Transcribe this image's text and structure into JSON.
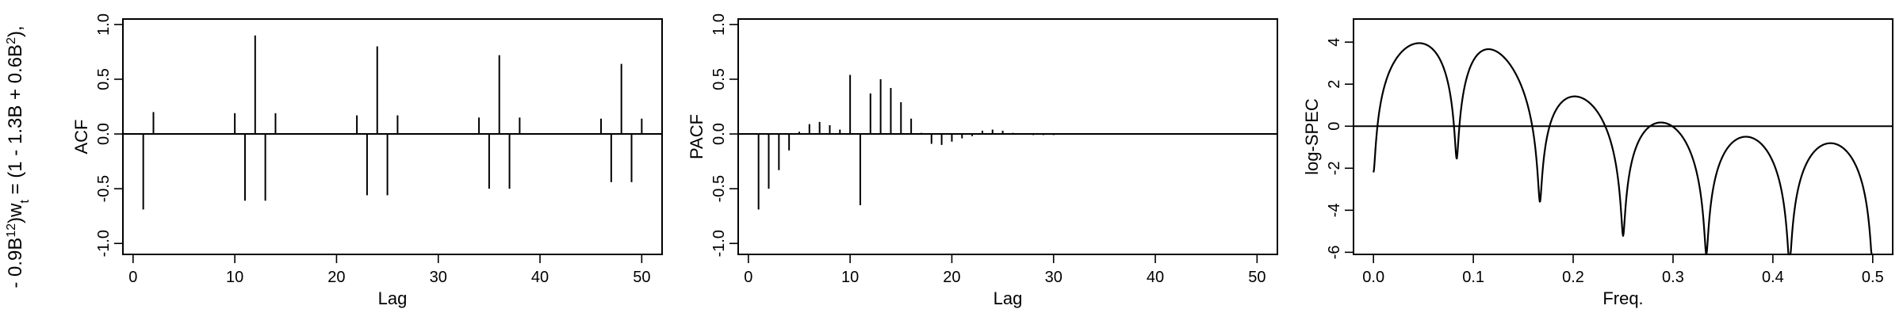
{
  "figure": {
    "row_label_parts": [
      "- 0.9B",
      "12",
      ")w",
      "t",
      " = (1 - 1.3B + 0.6B",
      "2",
      "),"
    ]
  },
  "chart_data": [
    {
      "type": "bar",
      "subtype": "stem",
      "xlabel": "Lag",
      "ylabel": "ACF",
      "xlim": [
        -1,
        52
      ],
      "ylim": [
        -1.1,
        1.05
      ],
      "xticks": [
        0,
        10,
        20,
        30,
        40,
        50
      ],
      "yticks": [
        -1.0,
        -0.5,
        0.0,
        0.5,
        1.0
      ],
      "xtick_labels": [
        "0",
        "10",
        "20",
        "30",
        "40",
        "50"
      ],
      "ytick_labels": [
        "-1.0",
        "-0.5",
        "0.0",
        "0.5",
        "1.0"
      ],
      "zero_line": true,
      "x": [
        1,
        2,
        10,
        11,
        12,
        13,
        14,
        22,
        23,
        24,
        25,
        26,
        34,
        35,
        36,
        37,
        38,
        46,
        47,
        48,
        49,
        50
      ],
      "values": [
        -0.69,
        0.2,
        0.19,
        -0.61,
        0.9,
        -0.61,
        0.19,
        0.17,
        -0.56,
        0.8,
        -0.56,
        0.17,
        0.15,
        -0.5,
        0.72,
        -0.5,
        0.15,
        0.14,
        -0.44,
        0.64,
        -0.44,
        0.14
      ]
    },
    {
      "type": "bar",
      "subtype": "stem",
      "xlabel": "Lag",
      "ylabel": "PACF",
      "xlim": [
        -1,
        52
      ],
      "ylim": [
        -1.1,
        1.05
      ],
      "xticks": [
        0,
        10,
        20,
        30,
        40,
        50
      ],
      "yticks": [
        -1.0,
        -0.5,
        0.0,
        0.5,
        1.0
      ],
      "xtick_labels": [
        "0",
        "10",
        "20",
        "30",
        "40",
        "50"
      ],
      "ytick_labels": [
        "-1.0",
        "-0.5",
        "0.0",
        "0.5",
        "1.0"
      ],
      "zero_line": true,
      "x": [
        1,
        2,
        3,
        4,
        5,
        6,
        7,
        8,
        9,
        10,
        11,
        12,
        13,
        14,
        15,
        16,
        17,
        18,
        19,
        20,
        21,
        22,
        23,
        24,
        25,
        26,
        27,
        28,
        29,
        30
      ],
      "values": [
        -0.69,
        -0.5,
        -0.33,
        -0.15,
        0.02,
        0.09,
        0.11,
        0.08,
        0.04,
        0.54,
        -0.65,
        0.37,
        0.5,
        0.42,
        0.29,
        0.14,
        0.01,
        -0.09,
        -0.1,
        -0.07,
        -0.04,
        -0.02,
        0.03,
        0.04,
        0.03,
        0.01,
        0.0,
        -0.01,
        -0.01,
        -0.01
      ]
    },
    {
      "type": "line",
      "xlabel": "Freq.",
      "ylabel": "log-SPEC",
      "xlim": [
        -0.02,
        0.52
      ],
      "ylim": [
        -6.1,
        5.1
      ],
      "xticks": [
        0.0,
        0.1,
        0.2,
        0.3,
        0.4,
        0.5
      ],
      "yticks": [
        -6,
        -4,
        -2,
        0,
        2,
        4
      ],
      "xtick_labels": [
        "0.0",
        "0.1",
        "0.2",
        "0.3",
        "0.4",
        "0.5"
      ],
      "ytick_labels": [
        "-6",
        "-4",
        "-2",
        "0",
        "2",
        "4"
      ],
      "zero_line": true,
      "model": {
        "ar": [
          1.3,
          -0.6
        ],
        "seasonal_ma": 0.9,
        "period": 12
      }
    }
  ]
}
